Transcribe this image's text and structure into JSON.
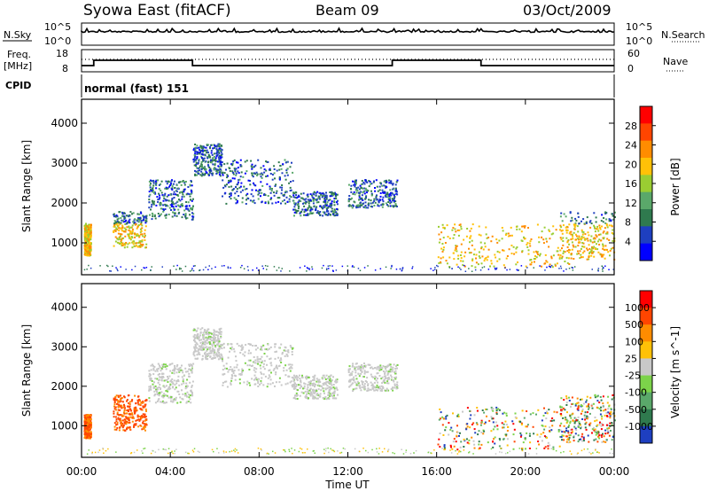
{
  "header": {
    "title": "Syowa East (fitACF)",
    "beam": "Beam 09",
    "date": "03/Oct/2009"
  },
  "panels": {
    "nsky": {
      "label": "N.Sky",
      "left_ticks": [
        "10^5",
        "10^0"
      ],
      "right_ticks": [
        "10^5",
        "10^0"
      ],
      "right_label": "N.Search"
    },
    "freq": {
      "label_1": "Freq.",
      "label_2": "[MHz]",
      "left_ticks": [
        "18",
        "8"
      ],
      "right_ticks": [
        "60",
        "0"
      ],
      "right_label": "Nave"
    },
    "cpid": {
      "label": "CPID",
      "value": "normal (fast) 151"
    }
  },
  "chart_data": [
    {
      "type": "heatmap",
      "name": "power",
      "ylabel": "Slant Range [km]",
      "y_ticks": [
        "4000",
        "3000",
        "2000",
        "1000"
      ],
      "ylim": [
        200,
        4600
      ],
      "colorbar_label": "Power [dB]",
      "colorbar_ticks": [
        "28",
        "24",
        "20",
        "16",
        "12",
        "8",
        "4"
      ],
      "colors": [
        "#0000ff",
        "#1e3fc0",
        "#2f7a4e",
        "#5aa86a",
        "#9acd32",
        "#ffc107",
        "#ff8c00",
        "#ff4500",
        "#ff0000"
      ],
      "echo_regions": [
        {
          "t": [
            0.1,
            0.4
          ],
          "r": [
            700,
            1500
          ]
        },
        {
          "t": [
            1.4,
            2.9
          ],
          "r": [
            900,
            1800
          ]
        },
        {
          "t": [
            3.0,
            5.0
          ],
          "r": [
            1600,
            2600
          ]
        },
        {
          "t": [
            5.0,
            6.3
          ],
          "r": [
            2700,
            3500
          ]
        },
        {
          "t": [
            6.3,
            9.5
          ],
          "r": [
            2000,
            3100
          ]
        },
        {
          "t": [
            9.5,
            11.5
          ],
          "r": [
            1700,
            2300
          ]
        },
        {
          "t": [
            12.0,
            14.2
          ],
          "r": [
            1900,
            2600
          ]
        },
        {
          "t": [
            16.0,
            22.0
          ],
          "r": [
            400,
            1500
          ]
        },
        {
          "t": [
            21.5,
            24.0
          ],
          "r": [
            600,
            1800
          ]
        }
      ]
    },
    {
      "type": "heatmap",
      "name": "velocity",
      "ylabel": "Slant Range [km]",
      "y_ticks": [
        "4000",
        "3000",
        "2000",
        "1000"
      ],
      "ylim": [
        200,
        4600
      ],
      "colorbar_label": "Velocity [m s^-1]",
      "colorbar_ticks": [
        "1000",
        "500",
        "100",
        "25",
        "-25",
        "-100",
        "-500",
        "-1000"
      ],
      "colors": [
        "#1e3fc0",
        "#2f7a4e",
        "#5aa86a",
        "#7cd34a",
        "#c8c8c8",
        "#ffc107",
        "#ff8c00",
        "#ff4500",
        "#ff0000"
      ],
      "echo_regions": [
        {
          "t": [
            0.1,
            0.4
          ],
          "r": [
            700,
            1300
          ]
        },
        {
          "t": [
            1.4,
            2.9
          ],
          "r": [
            900,
            1800
          ]
        },
        {
          "t": [
            3.0,
            5.0
          ],
          "r": [
            1600,
            2600
          ]
        },
        {
          "t": [
            5.0,
            6.3
          ],
          "r": [
            2700,
            3500
          ]
        },
        {
          "t": [
            6.3,
            9.5
          ],
          "r": [
            2000,
            3100
          ]
        },
        {
          "t": [
            9.5,
            11.5
          ],
          "r": [
            1700,
            2300
          ]
        },
        {
          "t": [
            12.0,
            14.2
          ],
          "r": [
            1900,
            2600
          ]
        },
        {
          "t": [
            16.0,
            22.0
          ],
          "r": [
            400,
            1500
          ]
        },
        {
          "t": [
            21.5,
            24.0
          ],
          "r": [
            600,
            1800
          ]
        }
      ]
    }
  ],
  "x_axis": {
    "label": "Time UT",
    "ticks": [
      "00:00",
      "04:00",
      "08:00",
      "12:00",
      "16:00",
      "20:00",
      "00:00"
    ],
    "range_hours": [
      0,
      24
    ]
  }
}
